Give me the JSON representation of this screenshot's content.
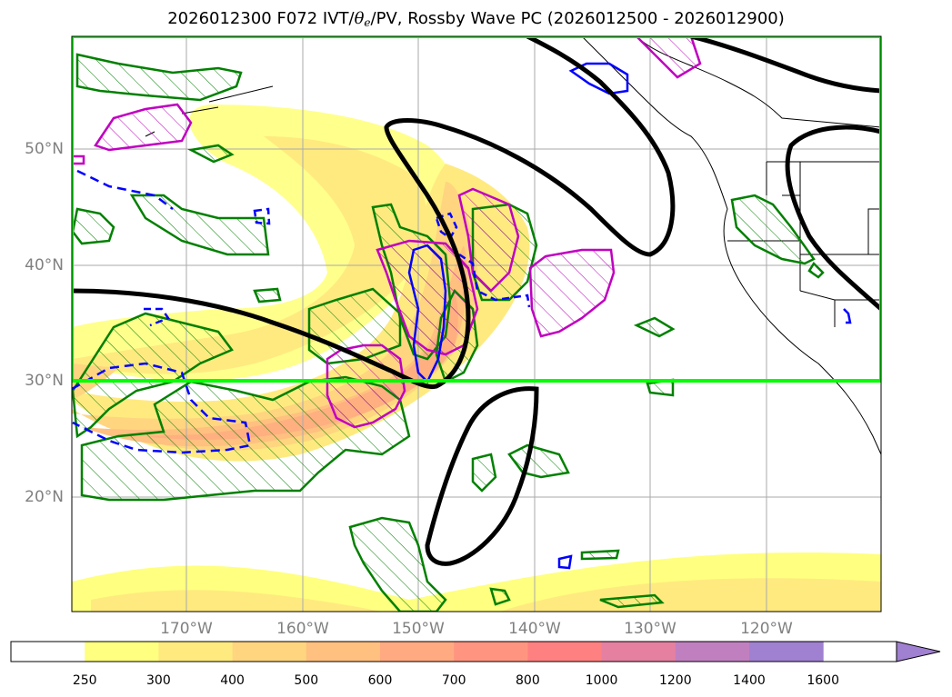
{
  "title": {
    "prefix": "2026012300 F072 IVT/",
    "theta": "θ",
    "theta_sub": "e",
    "suffix": "/PV, Rossby Wave PC (2026012500 - 2026012900)"
  },
  "lat_labels": [
    "50°N",
    "40°N",
    "30°N",
    "20°N"
  ],
  "lon_labels": [
    "170°W",
    "160°W",
    "150°W",
    "140°W",
    "130°W",
    "120°W"
  ],
  "colorbar": {
    "ticks": [
      "250",
      "300",
      "400",
      "500",
      "600",
      "700",
      "800",
      "1000",
      "1200",
      "1400",
      "1600"
    ],
    "colors": [
      "#ffffff",
      "#ffff80",
      "#ffea80",
      "#ffd580",
      "#ffc080",
      "#ffaa80",
      "#ff9580",
      "#ff8080",
      "#e580a0",
      "#c080c0",
      "#a080d0",
      "#a080d0"
    ]
  },
  "legend_colors": {
    "highlight_box": "#00ff00",
    "contour_black": "#000000",
    "hatch_green": "#008000",
    "hatch_magenta": "#c000c0",
    "contour_blue": "#0000ff"
  }
}
